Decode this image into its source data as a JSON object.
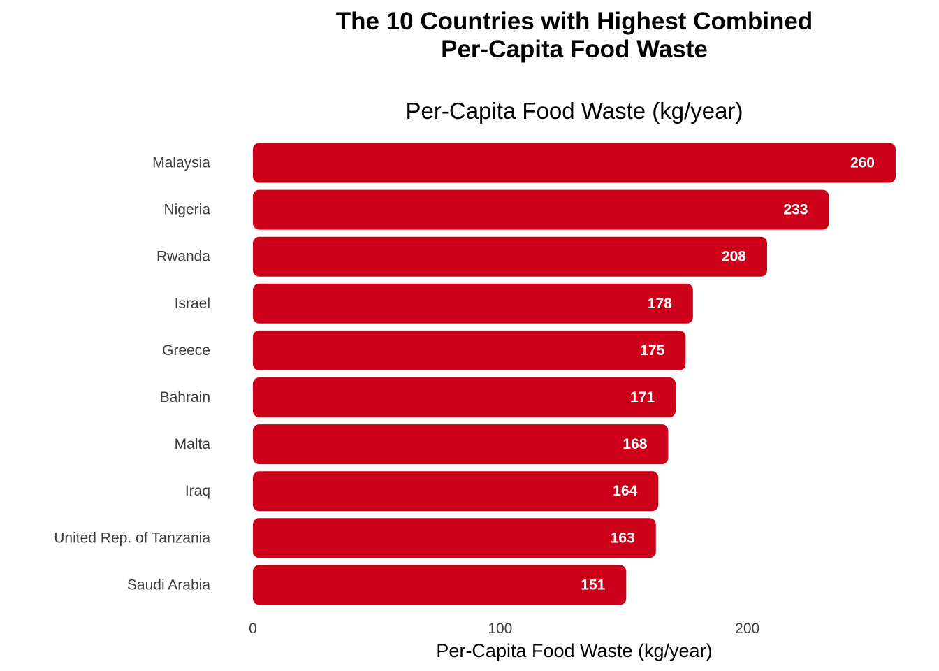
{
  "chart_data": {
    "type": "bar",
    "orientation": "horizontal",
    "title_lines": [
      "The 10 Countries with Highest Combined",
      "Per-Capita Food Waste"
    ],
    "subtitle": "Per-Capita Food Waste (kg/year)",
    "categories": [
      "Malaysia",
      "Nigeria",
      "Rwanda",
      "Israel",
      "Greece",
      "Bahrain",
      "Malta",
      "Iraq",
      "United Rep. of Tanzania",
      "Saudi Arabia"
    ],
    "values": [
      260,
      233,
      208,
      178,
      175,
      171,
      168,
      164,
      163,
      151
    ],
    "value_labels": [
      "260",
      "233",
      "208",
      "178",
      "175",
      "171",
      "168",
      "164",
      "163",
      "151"
    ],
    "xlabel": "Per-Capita Food Waste (kg/year)",
    "ylabel": "",
    "xlim": [
      0,
      260
    ],
    "x_ticks": [
      0,
      100,
      200
    ],
    "x_tick_labels": [
      "0",
      "100",
      "200"
    ],
    "grid": false,
    "bar_color": "#cc0018"
  }
}
